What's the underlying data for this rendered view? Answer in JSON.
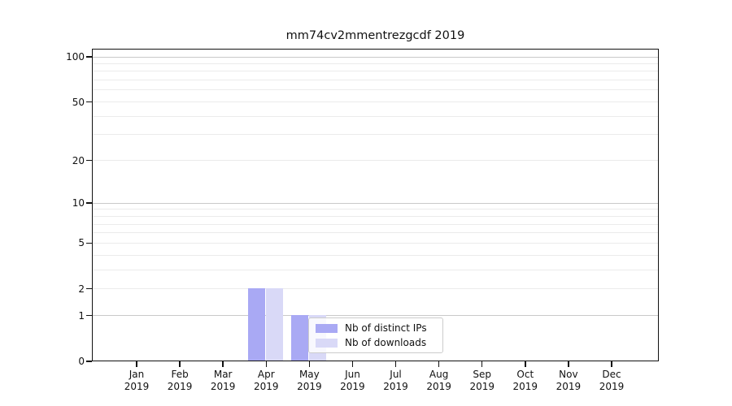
{
  "chart_data": {
    "type": "bar",
    "title": "mm74cv2mmentrezgcdf 2019",
    "categories": [
      "Jan",
      "Feb",
      "Mar",
      "Apr",
      "May",
      "Jun",
      "Jul",
      "Aug",
      "Sep",
      "Oct",
      "Nov",
      "Dec"
    ],
    "x_year_label": "2019",
    "series": [
      {
        "name": "Nb of distinct IPs",
        "color": "#a9a9f4",
        "values": [
          0,
          0,
          0,
          2,
          1,
          0,
          0,
          0,
          0,
          0,
          0,
          0
        ]
      },
      {
        "name": "Nb of downloads",
        "color": "#d9d9f7",
        "values": [
          0,
          0,
          0,
          2,
          1,
          0,
          0,
          0,
          0,
          0,
          0,
          0
        ]
      }
    ],
    "y_ticks": [
      0,
      1,
      2,
      5,
      10,
      20,
      50,
      100
    ],
    "y_scale": "log1p",
    "ylim": [
      0,
      113
    ],
    "xlabel": "",
    "ylabel": "",
    "grid": {
      "minor_values": [
        2,
        3,
        4,
        5,
        6,
        7,
        8,
        9,
        20,
        30,
        40,
        50,
        60,
        70,
        80,
        90
      ],
      "major_values": [
        1,
        10,
        100
      ],
      "minor_color": "#ebebeb",
      "major_color": "#c9c9c9"
    },
    "legend": {
      "position": "lower-center"
    }
  }
}
